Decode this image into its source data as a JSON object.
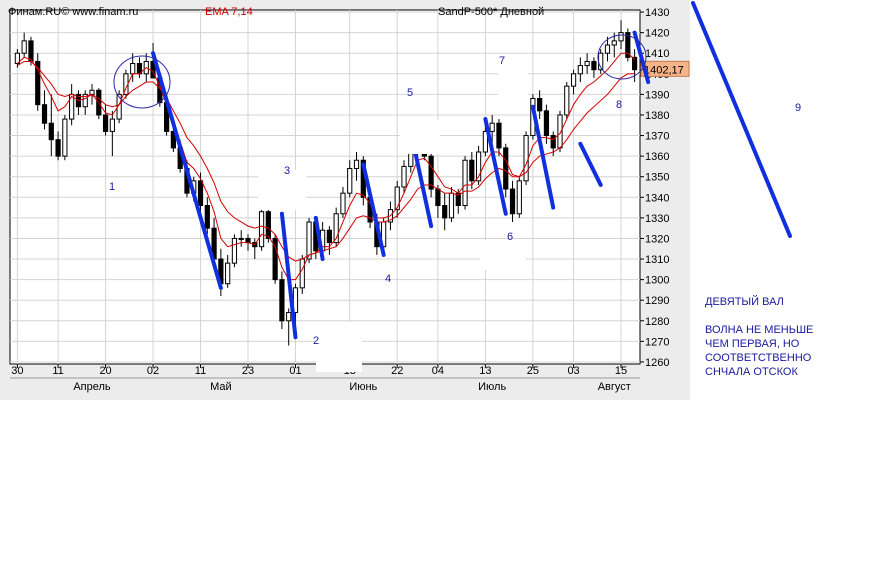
{
  "header": {
    "source": "Финам.RU© www.finam.ru",
    "indicator": "EMA 7,14",
    "instrument": "SandP-500* Дневной"
  },
  "notes": {
    "title": "ДЕВЯТЫЙ ВАЛ",
    "line1": "ВОЛНА НЕ МЕНЬШЕ",
    "line2": "ЧЕМ ПЕРВАЯ, НО",
    "line3": "СООТВЕТСТВЕННО",
    "line4": "СНЧАЛА ОТСКОК"
  },
  "chart_data": {
    "type": "candlestick",
    "ylim": [
      1260,
      1430
    ],
    "y_ticks": [
      1260,
      1270,
      1280,
      1290,
      1300,
      1310,
      1320,
      1330,
      1340,
      1350,
      1360,
      1370,
      1380,
      1390,
      1400,
      1410,
      1420,
      1430
    ],
    "last_price": "1402,17",
    "x_day_labels": [
      {
        "i": 0,
        "t": "30"
      },
      {
        "i": 6,
        "t": "11"
      },
      {
        "i": 13,
        "t": "20"
      },
      {
        "i": 20,
        "t": "02"
      },
      {
        "i": 27,
        "t": "11"
      },
      {
        "i": 34,
        "t": "23"
      },
      {
        "i": 41,
        "t": "01"
      },
      {
        "i": 49,
        "t": "13"
      },
      {
        "i": 56,
        "t": "22"
      },
      {
        "i": 62,
        "t": "04"
      },
      {
        "i": 69,
        "t": "13"
      },
      {
        "i": 76,
        "t": "25"
      },
      {
        "i": 82,
        "t": "03"
      },
      {
        "i": 89,
        "t": "15"
      }
    ],
    "x_month_labels": [
      {
        "i": 11,
        "t": "Апрель"
      },
      {
        "i": 30,
        "t": "Май"
      },
      {
        "i": 51,
        "t": "Июнь"
      },
      {
        "i": 70,
        "t": "Июль"
      },
      {
        "i": 88,
        "t": "Август"
      }
    ],
    "candles": [
      [
        1405,
        1412,
        1403,
        1410
      ],
      [
        1410,
        1420,
        1408,
        1416
      ],
      [
        1416,
        1418,
        1404,
        1406
      ],
      [
        1406,
        1410,
        1382,
        1385
      ],
      [
        1385,
        1392,
        1373,
        1376
      ],
      [
        1376,
        1390,
        1360,
        1368
      ],
      [
        1368,
        1372,
        1358,
        1360
      ],
      [
        1360,
        1380,
        1358,
        1378
      ],
      [
        1378,
        1395,
        1375,
        1390
      ],
      [
        1390,
        1392,
        1380,
        1384
      ],
      [
        1384,
        1392,
        1380,
        1390
      ],
      [
        1390,
        1395,
        1385,
        1392
      ],
      [
        1392,
        1393,
        1378,
        1380
      ],
      [
        1380,
        1385,
        1370,
        1372
      ],
      [
        1372,
        1382,
        1360,
        1378
      ],
      [
        1378,
        1392,
        1376,
        1390
      ],
      [
        1390,
        1402,
        1388,
        1400
      ],
      [
        1400,
        1410,
        1396,
        1405
      ],
      [
        1405,
        1408,
        1398,
        1400
      ],
      [
        1400,
        1410,
        1396,
        1406
      ],
      [
        1406,
        1415,
        1398,
        1398
      ],
      [
        1398,
        1400,
        1384,
        1386
      ],
      [
        1386,
        1390,
        1370,
        1372
      ],
      [
        1372,
        1375,
        1362,
        1364
      ],
      [
        1364,
        1368,
        1352,
        1354
      ],
      [
        1354,
        1358,
        1340,
        1342
      ],
      [
        1342,
        1350,
        1338,
        1348
      ],
      [
        1348,
        1352,
        1333,
        1336
      ],
      [
        1336,
        1340,
        1322,
        1325
      ],
      [
        1325,
        1330,
        1308,
        1310
      ],
      [
        1310,
        1315,
        1292,
        1298
      ],
      [
        1298,
        1312,
        1296,
        1308
      ],
      [
        1308,
        1322,
        1306,
        1320
      ],
      [
        1320,
        1324,
        1316,
        1320
      ],
      [
        1320,
        1322,
        1314,
        1318
      ],
      [
        1318,
        1320,
        1310,
        1316
      ],
      [
        1316,
        1335,
        1314,
        1333
      ],
      [
        1333,
        1335,
        1318,
        1320
      ],
      [
        1320,
        1322,
        1298,
        1300
      ],
      [
        1300,
        1304,
        1276,
        1280
      ],
      [
        1280,
        1286,
        1268,
        1284
      ],
      [
        1284,
        1298,
        1276,
        1296
      ],
      [
        1296,
        1312,
        1293,
        1310
      ],
      [
        1310,
        1330,
        1308,
        1328
      ],
      [
        1328,
        1330,
        1310,
        1314
      ],
      [
        1314,
        1328,
        1310,
        1324
      ],
      [
        1324,
        1326,
        1312,
        1318
      ],
      [
        1318,
        1335,
        1316,
        1332
      ],
      [
        1332,
        1345,
        1330,
        1342
      ],
      [
        1342,
        1358,
        1340,
        1354
      ],
      [
        1354,
        1362,
        1348,
        1358
      ],
      [
        1358,
        1360,
        1336,
        1340
      ],
      [
        1340,
        1345,
        1325,
        1328
      ],
      [
        1328,
        1332,
        1312,
        1316
      ],
      [
        1316,
        1330,
        1314,
        1328
      ],
      [
        1328,
        1338,
        1324,
        1334
      ],
      [
        1334,
        1348,
        1330,
        1345
      ],
      [
        1345,
        1358,
        1342,
        1355
      ],
      [
        1355,
        1368,
        1352,
        1365
      ],
      [
        1365,
        1375,
        1360,
        1372
      ],
      [
        1372,
        1374,
        1358,
        1360
      ],
      [
        1360,
        1362,
        1340,
        1344
      ],
      [
        1344,
        1346,
        1330,
        1336
      ],
      [
        1336,
        1342,
        1324,
        1330
      ],
      [
        1330,
        1345,
        1328,
        1342
      ],
      [
        1342,
        1344,
        1332,
        1336
      ],
      [
        1336,
        1360,
        1334,
        1358
      ],
      [
        1358,
        1362,
        1344,
        1348
      ],
      [
        1348,
        1365,
        1346,
        1362
      ],
      [
        1362,
        1376,
        1360,
        1372
      ],
      [
        1372,
        1380,
        1366,
        1376
      ],
      [
        1376,
        1378,
        1360,
        1364
      ],
      [
        1364,
        1366,
        1340,
        1344
      ],
      [
        1344,
        1348,
        1328,
        1332
      ],
      [
        1332,
        1350,
        1330,
        1348
      ],
      [
        1348,
        1372,
        1346,
        1370
      ],
      [
        1370,
        1390,
        1368,
        1388
      ],
      [
        1388,
        1392,
        1378,
        1382
      ],
      [
        1382,
        1385,
        1366,
        1370
      ],
      [
        1370,
        1372,
        1360,
        1364
      ],
      [
        1364,
        1382,
        1362,
        1380
      ],
      [
        1380,
        1396,
        1378,
        1394
      ],
      [
        1394,
        1402,
        1390,
        1400
      ],
      [
        1400,
        1408,
        1396,
        1404
      ],
      [
        1404,
        1410,
        1400,
        1406
      ],
      [
        1406,
        1408,
        1398,
        1402
      ],
      [
        1402,
        1412,
        1400,
        1410
      ],
      [
        1410,
        1418,
        1406,
        1414
      ],
      [
        1414,
        1420,
        1408,
        1416
      ],
      [
        1416,
        1426,
        1412,
        1420
      ],
      [
        1420,
        1422,
        1406,
        1408
      ],
      [
        1408,
        1412,
        1396,
        1402
      ]
    ],
    "ema_fast": [
      1405,
      1408,
      1407,
      1402,
      1395,
      1389,
      1382,
      1384,
      1389,
      1387,
      1388,
      1390,
      1386,
      1381,
      1380,
      1385,
      1393,
      1400,
      1400,
      1403,
      1401,
      1394,
      1385,
      1376,
      1367,
      1357,
      1354,
      1349,
      1342,
      1333,
      1320,
      1316,
      1317,
      1318,
      1318,
      1317,
      1322,
      1321,
      1316,
      1306,
      1300,
      1300,
      1305,
      1312,
      1313,
      1316,
      1316,
      1320,
      1328,
      1336,
      1342,
      1341,
      1337,
      1330,
      1330,
      1331,
      1335,
      1342,
      1350,
      1358,
      1359,
      1355,
      1350,
      1345,
      1344,
      1342,
      1346,
      1346,
      1350,
      1357,
      1362,
      1362,
      1358,
      1351,
      1350,
      1356,
      1365,
      1369,
      1369,
      1368,
      1371,
      1378,
      1385,
      1390,
      1394,
      1396,
      1399,
      1402,
      1406,
      1410,
      1410,
      1407
    ],
    "ema_slow": [
      1404,
      1406,
      1406,
      1403,
      1399,
      1395,
      1390,
      1389,
      1390,
      1389,
      1389,
      1390,
      1388,
      1385,
      1384,
      1385,
      1389,
      1392,
      1394,
      1396,
      1396,
      1393,
      1388,
      1382,
      1376,
      1369,
      1365,
      1360,
      1354,
      1347,
      1338,
      1333,
      1330,
      1328,
      1326,
      1325,
      1326,
      1325,
      1322,
      1316,
      1311,
      1309,
      1310,
      1312,
      1313,
      1314,
      1315,
      1316,
      1320,
      1325,
      1330,
      1331,
      1330,
      1328,
      1328,
      1329,
      1331,
      1335,
      1339,
      1344,
      1346,
      1346,
      1344,
      1342,
      1342,
      1341,
      1343,
      1343,
      1345,
      1349,
      1352,
      1354,
      1353,
      1350,
      1350,
      1352,
      1357,
      1360,
      1361,
      1362,
      1364,
      1368,
      1373,
      1377,
      1381,
      1384,
      1387,
      1390,
      1394,
      1398,
      1400,
      1400
    ],
    "annotations": [
      "1",
      "2",
      "3",
      "4",
      "5",
      "6",
      "7",
      "8",
      "9"
    ]
  }
}
